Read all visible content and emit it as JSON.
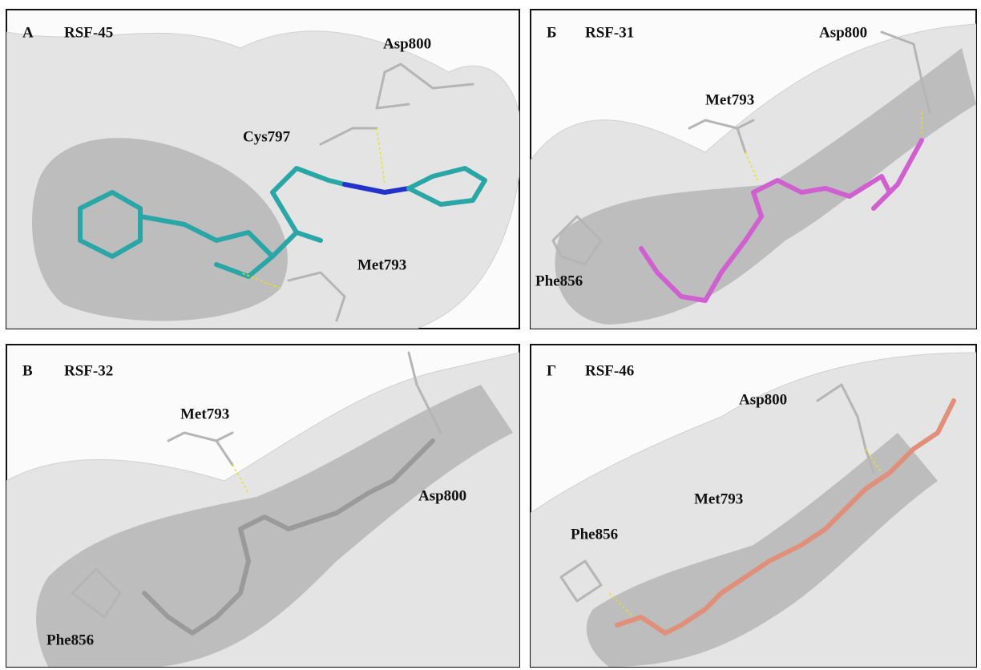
{
  "panels": [
    {
      "letter": "А",
      "compound": "RSF-45",
      "residues": [
        "Asp800",
        "Cys797",
        "Met793"
      ]
    },
    {
      "letter": "Б",
      "compound": "RSF-31",
      "residues": [
        "Asp800",
        "Met793",
        "Phe856"
      ]
    },
    {
      "letter": "В",
      "compound": "RSF-32",
      "residues": [
        "Met793",
        "Asp800",
        "Phe856"
      ]
    },
    {
      "letter": "Г",
      "compound": "RSF-46",
      "residues": [
        "Asp800",
        "Met793",
        "Phe856"
      ]
    }
  ]
}
